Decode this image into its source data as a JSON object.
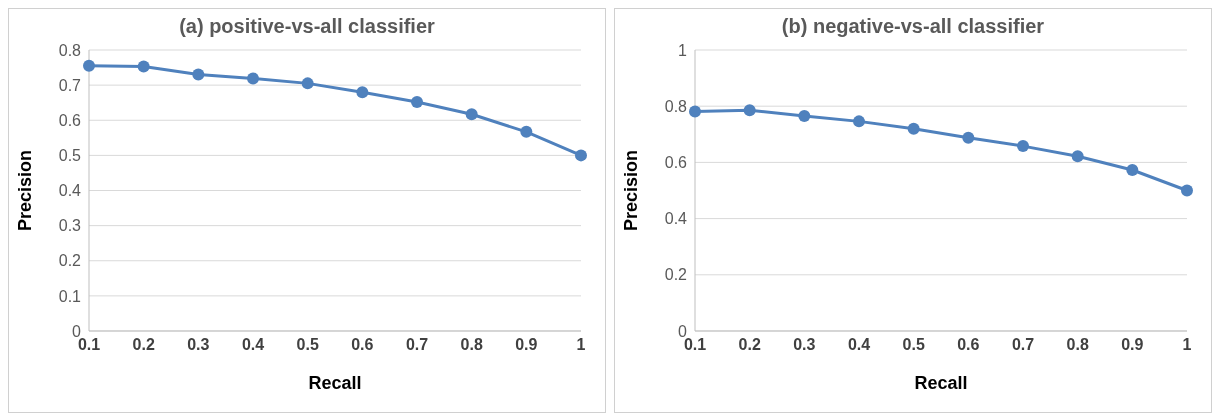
{
  "chart_data": [
    {
      "type": "line",
      "title": "(a) positive-vs-all classifier",
      "xlabel": "Recall",
      "ylabel": "Precision",
      "categories": [
        "0.1",
        "0.2",
        "0.3",
        "0.4",
        "0.5",
        "0.6",
        "0.7",
        "0.8",
        "0.9",
        "1"
      ],
      "series": [
        {
          "color": "#4f81bd",
          "values": [
            0.755,
            0.753,
            0.73,
            0.719,
            0.705,
            0.68,
            0.652,
            0.617,
            0.567,
            0.5
          ]
        }
      ],
      "ylim": [
        0,
        0.8
      ],
      "yticks": [
        0,
        0.1,
        0.2,
        0.3,
        0.4,
        0.5,
        0.6,
        0.7,
        0.8
      ],
      "grid": "y",
      "marker": "circle",
      "line_style": "solid",
      "legend": false
    },
    {
      "type": "line",
      "title": "(b) negative-vs-all classifier",
      "xlabel": "Recall",
      "ylabel": "Precision",
      "categories": [
        "0.1",
        "0.2",
        "0.3",
        "0.4",
        "0.5",
        "0.6",
        "0.7",
        "0.8",
        "0.9",
        "1"
      ],
      "series": [
        {
          "color": "#4f81bd",
          "values": [
            0.781,
            0.786,
            0.765,
            0.746,
            0.72,
            0.688,
            0.658,
            0.622,
            0.573,
            0.5
          ]
        }
      ],
      "ylim": [
        0,
        1
      ],
      "yticks": [
        0,
        0.2,
        0.4,
        0.6,
        0.8,
        1
      ],
      "grid": "y",
      "marker": "circle",
      "line_style": "solid",
      "legend": false
    }
  ]
}
